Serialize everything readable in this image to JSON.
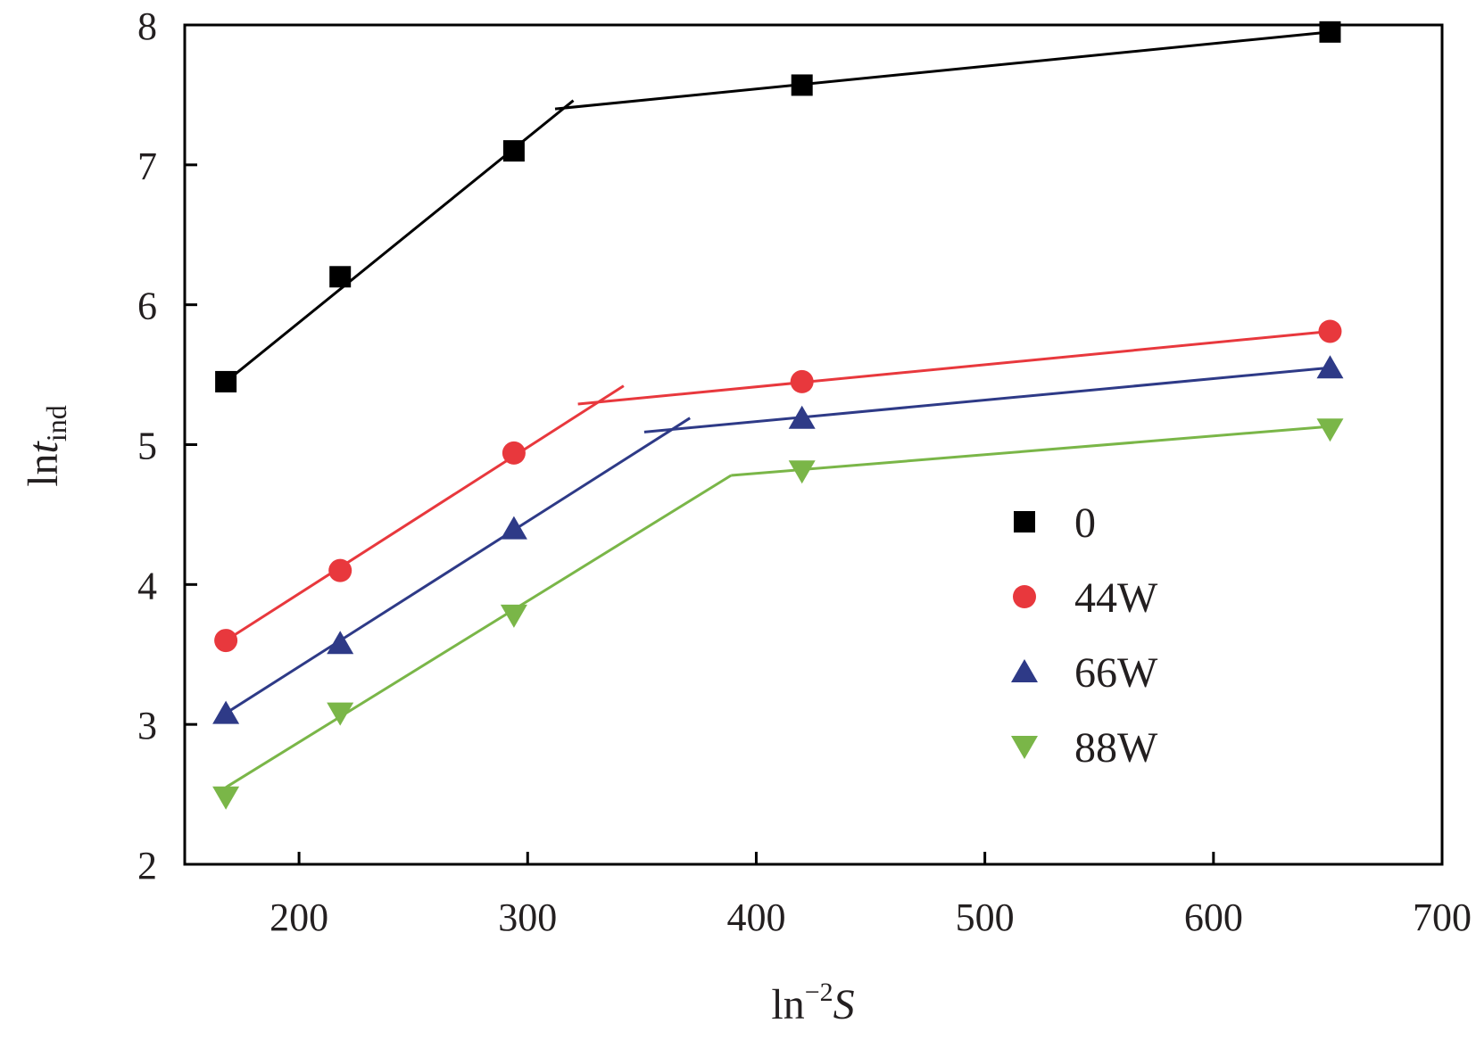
{
  "chart_data": {
    "type": "line",
    "title": "",
    "xlabel": {
      "main": "ln",
      "sup": "−2",
      "var": "S"
    },
    "ylabel": {
      "main": "ln",
      "var": "t",
      "sub": "ind"
    },
    "xlim": [
      150,
      700
    ],
    "ylim": [
      2,
      8
    ],
    "xticks": [
      200,
      300,
      400,
      500,
      600,
      700
    ],
    "yticks": [
      2,
      3,
      4,
      5,
      6,
      7,
      8
    ],
    "grid": false,
    "legend_position": "center-right",
    "series": [
      {
        "name": "0",
        "color": "#000000",
        "marker": "square",
        "points": [
          [
            168,
            5.45
          ],
          [
            218,
            6.2
          ],
          [
            294,
            7.1
          ],
          [
            420,
            7.57
          ],
          [
            651,
            7.95
          ]
        ],
        "fits": [
          [
            [
              168,
              5.45
            ],
            [
              320,
              7.46
            ]
          ],
          [
            [
              312,
              7.4
            ],
            [
              651,
              7.95
            ]
          ]
        ]
      },
      {
        "name": "44W",
        "color": "#e8383d",
        "marker": "circle",
        "points": [
          [
            168,
            3.6
          ],
          [
            218,
            4.1
          ],
          [
            294,
            4.94
          ],
          [
            420,
            5.45
          ],
          [
            651,
            5.81
          ]
        ],
        "fits": [
          [
            [
              168,
              3.6
            ],
            [
              342,
              5.42
            ]
          ],
          [
            [
              322,
              5.29
            ],
            [
              651,
              5.81
            ]
          ]
        ]
      },
      {
        "name": "66W",
        "color": "#2e3a87",
        "marker": "triangle-up",
        "points": [
          [
            168,
            3.08
          ],
          [
            218,
            3.58
          ],
          [
            294,
            4.4
          ],
          [
            420,
            5.19
          ],
          [
            651,
            5.55
          ]
        ],
        "fits": [
          [
            [
              168,
              3.08
            ],
            [
              371,
              5.19
            ]
          ],
          [
            [
              351,
              5.09
            ],
            [
              651,
              5.55
            ]
          ]
        ]
      },
      {
        "name": "88W",
        "color": "#7ab648",
        "marker": "triangle-down",
        "points": [
          [
            168,
            2.48
          ],
          [
            218,
            3.08
          ],
          [
            294,
            3.78
          ],
          [
            420,
            4.81
          ],
          [
            651,
            5.11
          ]
        ],
        "fits": [
          [
            [
              168,
              2.55
            ],
            [
              389,
              4.78
            ]
          ],
          [
            [
              389,
              4.78
            ],
            [
              651,
              5.13
            ]
          ]
        ]
      }
    ]
  }
}
